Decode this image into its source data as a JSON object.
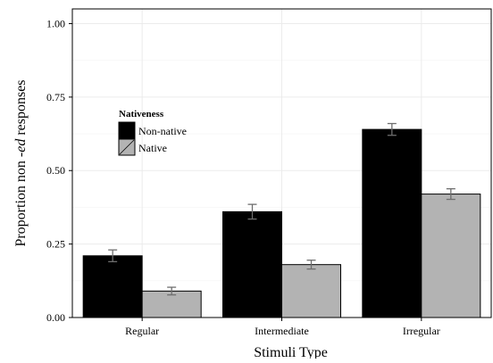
{
  "chart_data": {
    "type": "bar",
    "title": "",
    "xlabel": "Stimuli Type",
    "ylabel_prefix": "Proportion non -",
    "ylabel_emph": "ed",
    "ylabel_suffix": " responses",
    "categories": [
      "Regular",
      "Intermediate",
      "Irregular"
    ],
    "ylim": [
      0,
      1.05
    ],
    "yticks": [
      "0.00",
      "0.25",
      "0.50",
      "0.75",
      "1.00"
    ],
    "ytick_values": [
      0,
      0.25,
      0.5,
      0.75,
      1.0
    ],
    "grid": true,
    "error_bars": true,
    "legend": {
      "title": "Nativeness",
      "position": "top-left"
    },
    "series": [
      {
        "name": "Non-native",
        "color": "#000000",
        "values": [
          0.21,
          0.36,
          0.64
        ],
        "errors": [
          0.02,
          0.025,
          0.02
        ]
      },
      {
        "name": "Native",
        "color": "#b3b3b3",
        "values": [
          0.09,
          0.18,
          0.42
        ],
        "errors": [
          0.013,
          0.015,
          0.018
        ]
      }
    ]
  }
}
